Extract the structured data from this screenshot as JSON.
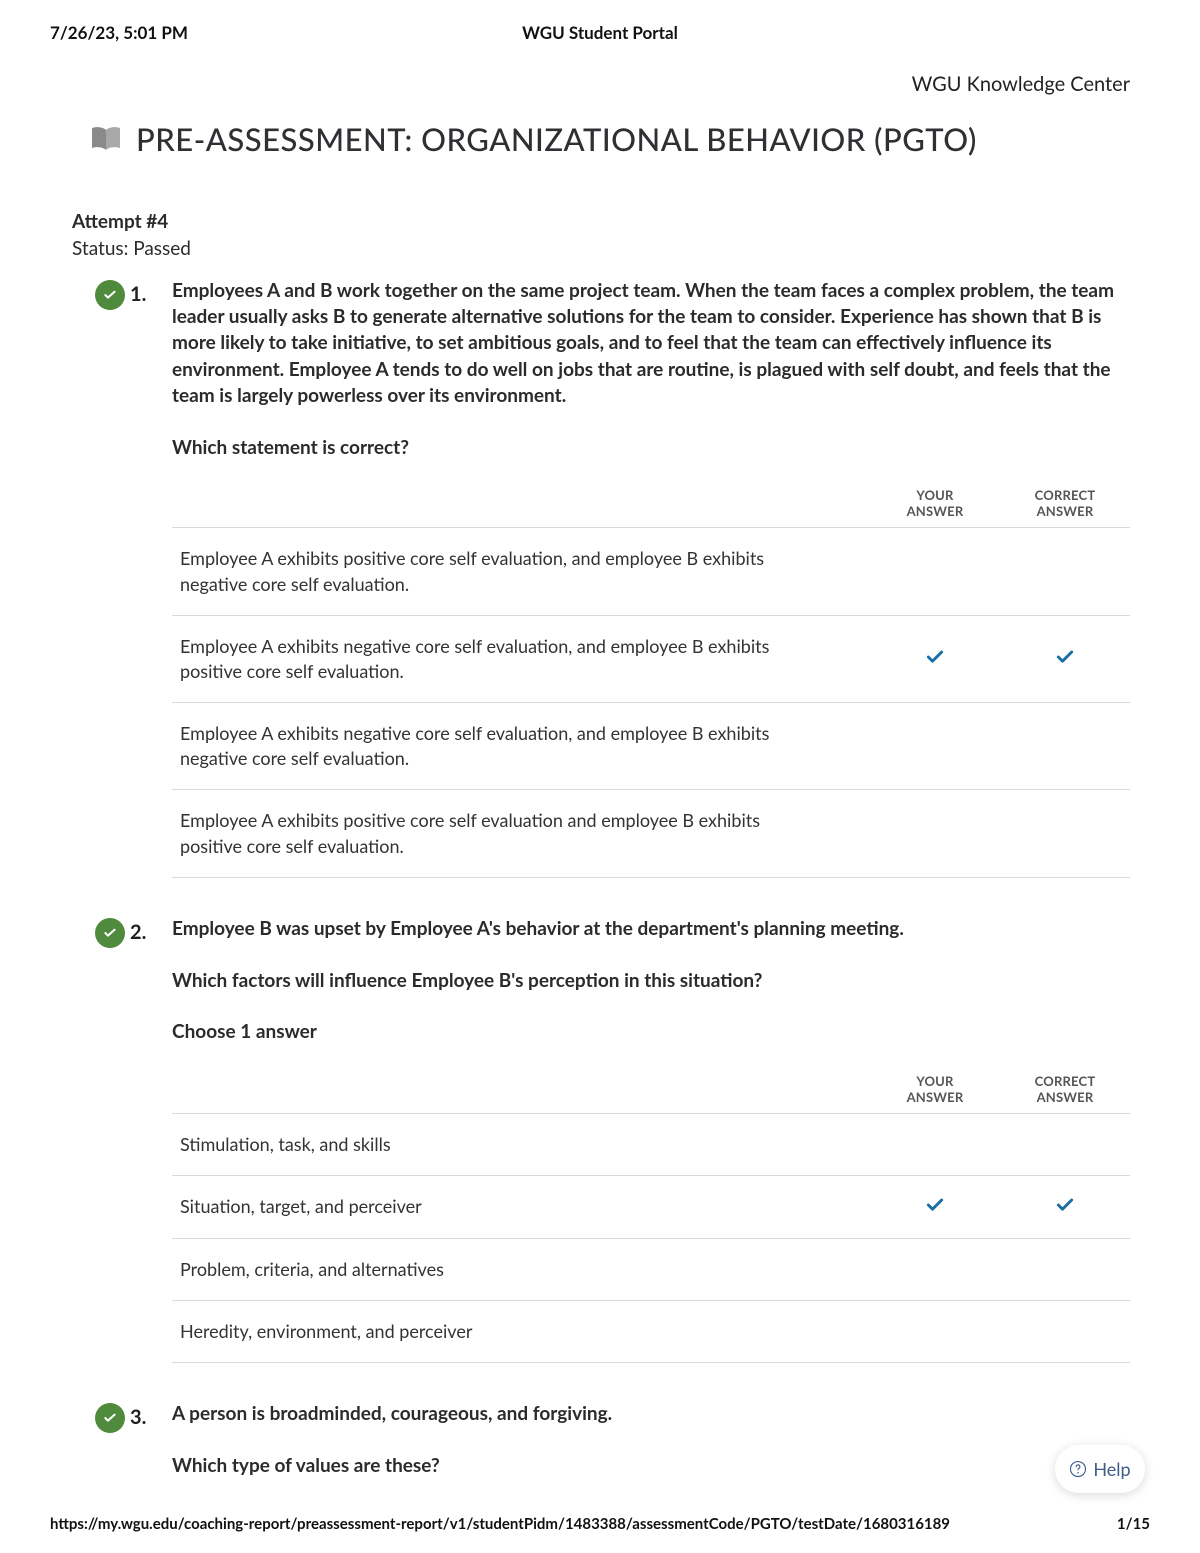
{
  "print": {
    "timestamp": "7/26/23, 5:01 PM",
    "portal_title": "WGU Student Portal",
    "footer_url": "https://my.wgu.edu/coaching-report/preassessment-report/v1/studentPidm/1483388/assessmentCode/PGTO/testDate/1680316189",
    "page_indicator": "1/15"
  },
  "header": {
    "knowledge_center": "WGU Knowledge Center",
    "title": "PRE-ASSESSMENT: ORGANIZATIONAL BEHAVIOR (PGTO)"
  },
  "meta": {
    "attempt_label": "Attempt #4",
    "status_label": "Status: Passed"
  },
  "table_headers": {
    "your": "YOUR ANSWER",
    "correct": "CORRECT ANSWER"
  },
  "colors": {
    "badge_green": "#4f8a3d",
    "check_blue": "#1a6fa3",
    "divider": "#d9d9d9",
    "help_text": "#3e5d8a"
  },
  "help_label": "Help",
  "questions": [
    {
      "number": "1.",
      "correct": true,
      "stem": "Employees A and B work together on the same project team. When the team faces a complex problem, the team leader usually asks B to generate alternative solutions for the team to consider. Experience has shown that B is more likely to take initiative, to set ambitious goals, and to feel that the team can effectively influence its environment. Employee A tends to do well on jobs that are routine, is plagued with self doubt, and feels that the team is largely powerless over its environment.",
      "prompt": "Which statement is correct?",
      "instruction": "",
      "options": [
        {
          "text": "Employee A exhibits positive core self evaluation, and employee B exhibits negative core self evaluation.",
          "your": false,
          "correct": false
        },
        {
          "text": "Employee A exhibits negative core self evaluation, and employee B exhibits positive core self evaluation.",
          "your": true,
          "correct": true
        },
        {
          "text": "Employee A exhibits negative core self evaluation, and employee B exhibits negative core self evaluation.",
          "your": false,
          "correct": false
        },
        {
          "text": "Employee A exhibits positive core self evaluation and employee B exhibits positive core self evaluation.",
          "your": false,
          "correct": false
        }
      ]
    },
    {
      "number": "2.",
      "correct": true,
      "stem": "Employee B was upset by Employee A's behavior at the department's planning meeting.",
      "prompt": "Which factors will influence Employee B's perception in this situation?",
      "instruction": "Choose 1 answer",
      "options": [
        {
          "text": "Stimulation, task, and skills",
          "your": false,
          "correct": false
        },
        {
          "text": "Situation, target, and perceiver",
          "your": true,
          "correct": true
        },
        {
          "text": "Problem, criteria, and alternatives",
          "your": false,
          "correct": false
        },
        {
          "text": "Heredity, environment, and perceiver",
          "your": false,
          "correct": false
        }
      ]
    },
    {
      "number": "3.",
      "correct": true,
      "stem": "A person is broadminded, courageous, and forgiving.",
      "prompt": "Which type of values are these?",
      "instruction": "",
      "options": []
    }
  ]
}
